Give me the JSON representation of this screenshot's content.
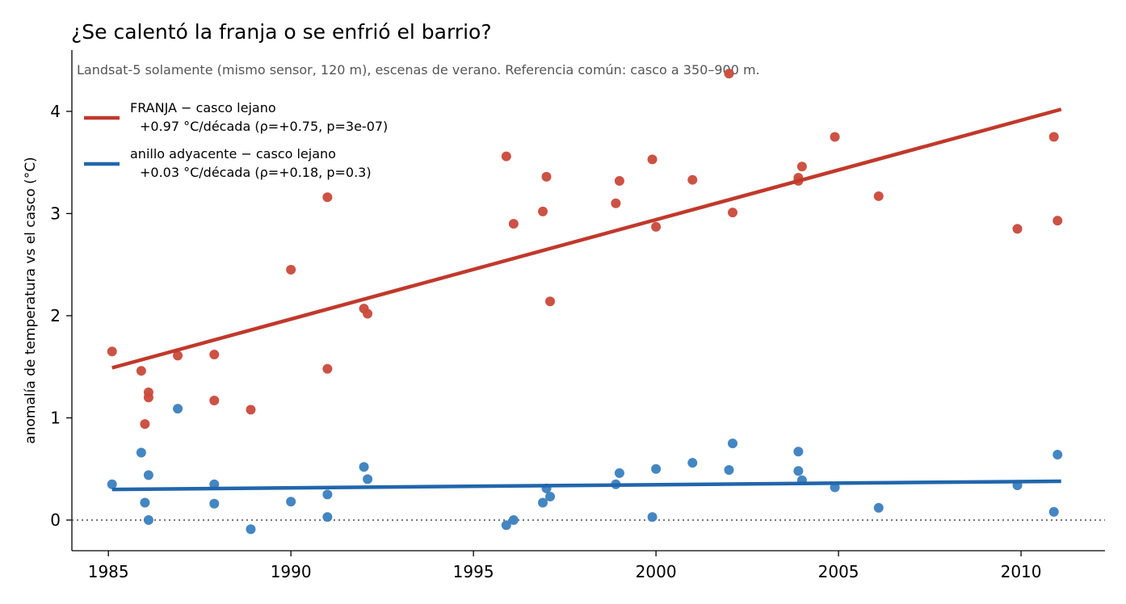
{
  "chart_data": {
    "type": "scatter",
    "title": "¿Se calentó la franja o se enfrió el barrio?",
    "subtitle": "Landsat-5 solamente (mismo sensor, 120 m), escenas de verano. Referencia común: casco a 350–900 m.",
    "xlabel": "",
    "ylabel": "anomalía de temperatura vs el casco (°C)",
    "xlim": [
      1984.0,
      2012.3
    ],
    "ylim": [
      -0.3,
      4.6
    ],
    "xticks": [
      1985,
      1990,
      1995,
      2000,
      2005,
      2010
    ],
    "yticks": [
      0,
      1,
      2,
      3,
      4
    ],
    "grid": false,
    "legend_position": "top-left",
    "reference_line": {
      "y": 0,
      "style": "dotted"
    },
    "series": [
      {
        "name": "FRANJA − casco lejano",
        "legend_detail": "+0.97 °C/década  (ρ=+0.75, p=3e-07)",
        "color": "#c0392b",
        "point_color": "#c9493a",
        "trend": {
          "x": [
            1985.1,
            2011.1
          ],
          "y": [
            1.49,
            4.02
          ]
        },
        "points": [
          [
            1985.1,
            1.65
          ],
          [
            1985.9,
            1.46
          ],
          [
            1986.0,
            0.94
          ],
          [
            1986.1,
            1.25
          ],
          [
            1986.1,
            1.2
          ],
          [
            1986.9,
            1.61
          ],
          [
            1987.9,
            1.62
          ],
          [
            1987.9,
            1.17
          ],
          [
            1988.9,
            1.08
          ],
          [
            1990.0,
            2.45
          ],
          [
            1991.0,
            3.16
          ],
          [
            1991.0,
            1.48
          ],
          [
            1992.0,
            2.07
          ],
          [
            1992.1,
            2.02
          ],
          [
            1995.9,
            3.56
          ],
          [
            1996.1,
            2.9
          ],
          [
            1996.9,
            3.02
          ],
          [
            1997.0,
            3.36
          ],
          [
            1997.1,
            2.14
          ],
          [
            1998.9,
            3.1
          ],
          [
            1999.0,
            3.32
          ],
          [
            1999.9,
            3.53
          ],
          [
            2000.0,
            2.87
          ],
          [
            2001.0,
            3.33
          ],
          [
            2002.0,
            4.37
          ],
          [
            2002.1,
            3.01
          ],
          [
            2003.9,
            3.35
          ],
          [
            2003.9,
            3.32
          ],
          [
            2004.0,
            3.46
          ],
          [
            2004.9,
            3.75
          ],
          [
            2006.1,
            3.17
          ],
          [
            2009.9,
            2.85
          ],
          [
            2010.9,
            3.75
          ],
          [
            2011.0,
            2.93
          ]
        ]
      },
      {
        "name": "anillo adyacente − casco lejano",
        "legend_detail": "+0.03 °C/década  (ρ=+0.18, p=0.3)",
        "color": "#2166ac",
        "point_color": "#3a7fbf",
        "trend": {
          "x": [
            1985.1,
            2011.1
          ],
          "y": [
            0.3,
            0.38
          ]
        },
        "points": [
          [
            1985.1,
            0.35
          ],
          [
            1985.9,
            0.66
          ],
          [
            1986.0,
            0.17
          ],
          [
            1986.1,
            0.44
          ],
          [
            1986.1,
            0.0
          ],
          [
            1986.9,
            1.09
          ],
          [
            1987.9,
            0.35
          ],
          [
            1987.9,
            0.16
          ],
          [
            1988.9,
            -0.09
          ],
          [
            1990.0,
            0.18
          ],
          [
            1991.0,
            0.25
          ],
          [
            1991.0,
            0.03
          ],
          [
            1992.0,
            0.52
          ],
          [
            1992.1,
            0.4
          ],
          [
            1995.9,
            -0.05
          ],
          [
            1996.1,
            0.0
          ],
          [
            1996.9,
            0.17
          ],
          [
            1997.0,
            0.31
          ],
          [
            1997.1,
            0.23
          ],
          [
            1998.9,
            0.35
          ],
          [
            1999.0,
            0.46
          ],
          [
            1999.9,
            0.03
          ],
          [
            2000.0,
            0.5
          ],
          [
            2001.0,
            0.56
          ],
          [
            2002.0,
            0.49
          ],
          [
            2002.1,
            0.75
          ],
          [
            2003.9,
            0.67
          ],
          [
            2003.9,
            0.48
          ],
          [
            2004.0,
            0.39
          ],
          [
            2004.9,
            0.32
          ],
          [
            2006.1,
            0.12
          ],
          [
            2009.9,
            0.34
          ],
          [
            2010.9,
            0.08
          ],
          [
            2011.0,
            0.64
          ]
        ]
      }
    ]
  }
}
